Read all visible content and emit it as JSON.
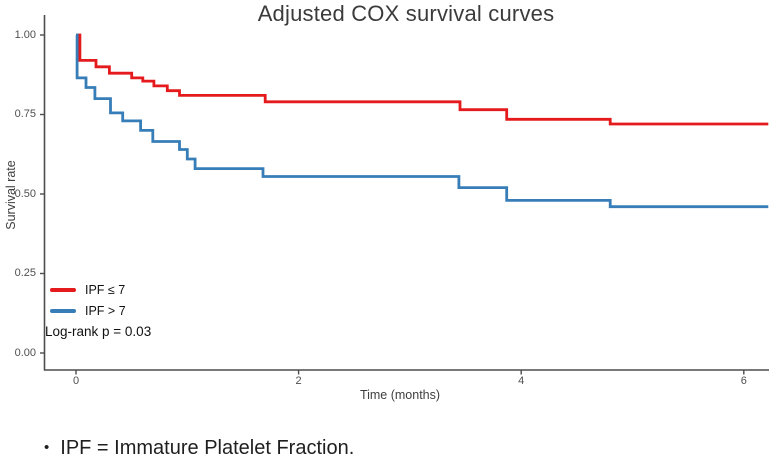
{
  "chart_data": {
    "type": "line",
    "subtype": "step-survival-curves",
    "title": "Adjusted COX survival curves",
    "xlabel": "Time (months)",
    "ylabel": "Survival rate",
    "grid": false,
    "legend_position": "inside-bottom-left",
    "xlim": [
      -0.29,
      6.25
    ],
    "ylim": [
      -0.05,
      1.06
    ],
    "x_ticks": [
      {
        "v": 0,
        "label": "0"
      },
      {
        "v": 2,
        "label": "2"
      },
      {
        "v": 4,
        "label": "4"
      },
      {
        "v": 6,
        "label": "6"
      }
    ],
    "y_ticks": [
      {
        "v": 0.0,
        "label": "0.00"
      },
      {
        "v": 0.25,
        "label": "0.25"
      },
      {
        "v": 0.5,
        "label": "0.50"
      },
      {
        "v": 0.75,
        "label": "0.75"
      },
      {
        "v": 1.0,
        "label": "1.00"
      }
    ],
    "end_t": 6.22,
    "series": [
      {
        "name": "IPF ≤ 7",
        "color": "#e41a1c",
        "points": [
          [
            0,
            1.0
          ],
          [
            0.035,
            0.92
          ],
          [
            0.18,
            0.9
          ],
          [
            0.3,
            0.88
          ],
          [
            0.5,
            0.865
          ],
          [
            0.6,
            0.855
          ],
          [
            0.7,
            0.84
          ],
          [
            0.82,
            0.825
          ],
          [
            0.93,
            0.81
          ],
          [
            1.7,
            0.79
          ],
          [
            3.45,
            0.765
          ],
          [
            3.87,
            0.735
          ],
          [
            4.8,
            0.72
          ]
        ]
      },
      {
        "name": "IPF > 7",
        "color": "#377eb8",
        "points": [
          [
            0,
            1.0
          ],
          [
            0.01,
            0.865
          ],
          [
            0.09,
            0.835
          ],
          [
            0.17,
            0.8
          ],
          [
            0.31,
            0.755
          ],
          [
            0.42,
            0.73
          ],
          [
            0.58,
            0.7
          ],
          [
            0.69,
            0.665
          ],
          [
            0.93,
            0.64
          ],
          [
            1.0,
            0.61
          ],
          [
            1.07,
            0.58
          ],
          [
            1.68,
            0.555
          ],
          [
            3.44,
            0.52
          ],
          [
            3.87,
            0.48
          ],
          [
            4.8,
            0.46
          ]
        ]
      }
    ],
    "annotation": "Log-rank p = 0.03"
  },
  "footnote": {
    "bullet": "•",
    "text": "IPF = Immature Platelet Fraction."
  },
  "colors": {
    "axis": "#4d4d4d",
    "tick_label": "#4f4f4f",
    "title": "#3b3b3b"
  }
}
